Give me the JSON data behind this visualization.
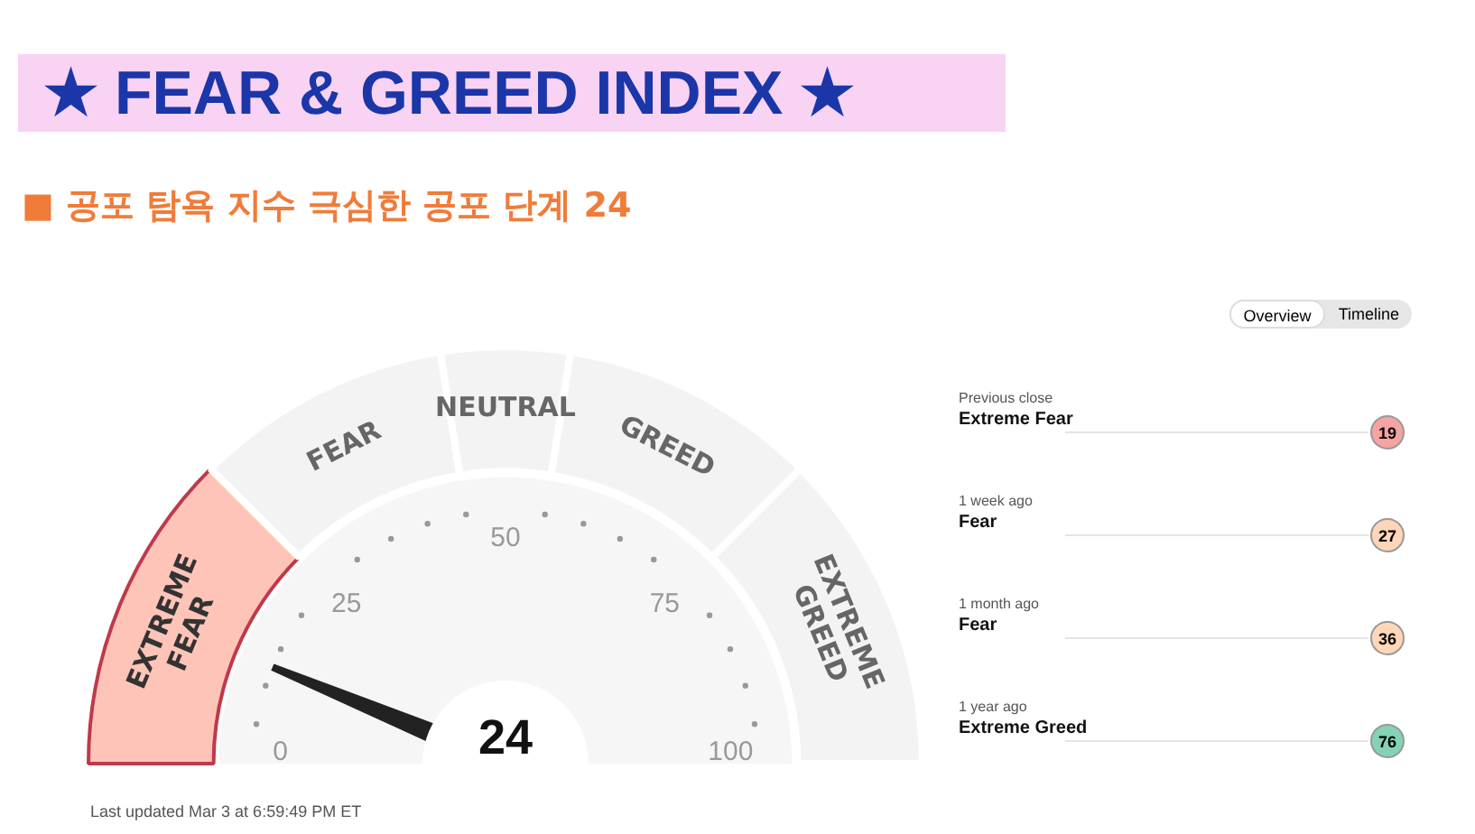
{
  "chart_data": [
    {
      "type": "donut",
      "title": "★ FEAR & GREED INDEX ★",
      "subtitle": "■ 공포 탐욕 지수 극심한 공포 단계 24",
      "categories": [
        "EXTREME FEAR",
        "FEAR",
        "NEUTRAL",
        "GREED",
        "EXTREME GREED"
      ],
      "values": [
        25,
        20,
        10,
        20,
        25
      ],
      "colors": [
        "#ffc4b8",
        "#f3f3f3",
        "#f3f3f3",
        "#f3f3f3",
        "#f3f3f3"
      ],
      "needle": "EXTREME FEAR",
      "annotations": [
        "24",
        "Last updated Mar 3 at 6:59:49 PM ET",
        "0",
        "25",
        "50",
        "75",
        "100"
      ]
    },
    {
      "type": "other",
      "annotations": [
        "Overview",
        "Timeline",
        "Previous close",
        "Extreme Fear",
        "19",
        "1 week ago",
        "Fear",
        "27",
        "1 month ago",
        "Fear",
        "36",
        "1 year ago",
        "Extreme Greed",
        "76"
      ]
    }
  ]
}
